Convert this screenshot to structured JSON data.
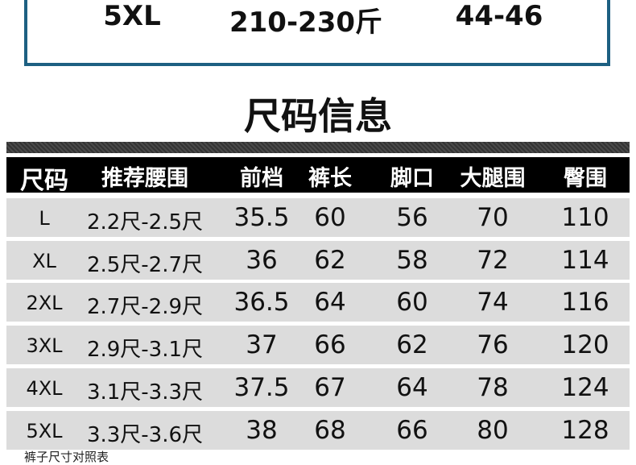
{
  "top_table_row": {
    "size": "5XL",
    "weight": "210-230斤",
    "value": "44-46"
  },
  "title": "尺码信息",
  "table": {
    "headers": [
      "尺码",
      "推荐腰围",
      "前档",
      "裤长",
      "脚口",
      "大腿围",
      "臀围"
    ],
    "rows": [
      [
        "L",
        "2.2尺-2.5尺",
        "35.5",
        "60",
        "56",
        "70",
        "110"
      ],
      [
        "XL",
        "2.5尺-2.7尺",
        "36",
        "62",
        "58",
        "72",
        "114"
      ],
      [
        "2XL",
        "2.7尺-2.9尺",
        "36.5",
        "64",
        "60",
        "74",
        "116"
      ],
      [
        "3XL",
        "2.9尺-3.1尺",
        "37",
        "66",
        "62",
        "76",
        "120"
      ],
      [
        "4XL",
        "3.1尺-3.3尺",
        "37.5",
        "67",
        "64",
        "78",
        "124"
      ],
      [
        "5XL",
        "3.3尺-3.6尺",
        "38",
        "68",
        "66",
        "80",
        "128"
      ]
    ]
  },
  "footer": "裤子尺寸对照表",
  "colors": {
    "box_border": "#1d6082",
    "header_bg": "#000000",
    "row_bg": "#dcdcdc"
  }
}
